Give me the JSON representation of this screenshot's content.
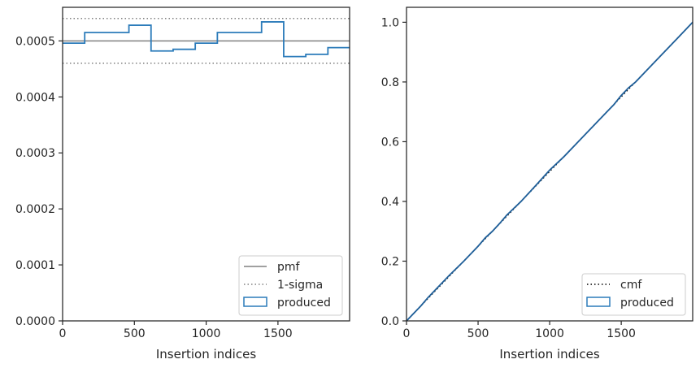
{
  "chart_data": [
    {
      "type": "line",
      "drawstyle": "steps",
      "xlabel": "Insertion indices",
      "ylabel": "",
      "xlim": [
        0,
        1999
      ],
      "ylim": [
        0,
        0.00056
      ],
      "xticks": [
        0,
        500,
        1000,
        1500
      ],
      "xtick_labels": [
        "0",
        "500",
        "1000",
        "1500"
      ],
      "yticks": [
        0,
        0.0001,
        0.0002,
        0.0003,
        0.0004,
        0.0005
      ],
      "ytick_labels": [
        "0.0000",
        "0.0001",
        "0.0002",
        "0.0003",
        "0.0004",
        "0.0005"
      ],
      "grid": false,
      "legend_position": "lower-right",
      "reference_lines": [
        {
          "label": "pmf",
          "y": 0.0005,
          "color": "#808080",
          "style": "solid"
        },
        {
          "label": "1-sigma",
          "y": 0.00054,
          "color": "#808080",
          "style": "dotted"
        },
        {
          "label": "1-sigma",
          "y": 0.00046,
          "color": "#808080",
          "style": "dotted"
        }
      ],
      "series": [
        {
          "name": "produced",
          "color": "#2b7bba",
          "bin_edges": [
            0,
            154,
            462,
            616,
            770,
            924,
            1078,
            1386,
            1540,
            1694,
            1848,
            1999
          ],
          "values": [
            0.000496,
            0.000515,
            0.000528,
            0.000482,
            0.000485,
            0.000496,
            0.000515,
            0.000534,
            0.000472,
            0.000476,
            0.000488
          ]
        }
      ],
      "legend": [
        {
          "label": "pmf",
          "marker": "solid-line",
          "color": "#808080"
        },
        {
          "label": "1-sigma",
          "marker": "dotted-line",
          "color": "#808080"
        },
        {
          "label": "produced",
          "marker": "box",
          "color": "#2b7bba"
        }
      ]
    },
    {
      "type": "line",
      "xlabel": "Insertion indices",
      "ylabel": "",
      "xlim": [
        0,
        1999
      ],
      "ylim": [
        0,
        1.05
      ],
      "xticks": [
        0,
        500,
        1000,
        1500
      ],
      "xtick_labels": [
        "0",
        "500",
        "1000",
        "1500"
      ],
      "yticks": [
        0,
        0.2,
        0.4,
        0.6,
        0.8,
        1.0
      ],
      "ytick_labels": [
        "0.0",
        "0.2",
        "0.4",
        "0.6",
        "0.8",
        "1.0"
      ],
      "grid": false,
      "legend_position": "lower-right",
      "series": [
        {
          "name": "cmf",
          "color": "#000000",
          "style": "dotted",
          "x": [
            0,
            1999
          ],
          "y": [
            0,
            1.0
          ]
        },
        {
          "name": "produced",
          "color": "#1f5f99",
          "style": "solid",
          "x": [
            0,
            30,
            60,
            100,
            150,
            200,
            300,
            400,
            500,
            550,
            600,
            650,
            700,
            800,
            900,
            1000,
            1100,
            1200,
            1300,
            1400,
            1450,
            1500,
            1550,
            1600,
            1650,
            1700,
            1800,
            1900,
            1999
          ],
          "y": [
            0.0,
            0.015,
            0.03,
            0.05,
            0.078,
            0.103,
            0.153,
            0.2,
            0.25,
            0.278,
            0.3,
            0.326,
            0.354,
            0.4,
            0.452,
            0.505,
            0.55,
            0.6,
            0.65,
            0.7,
            0.725,
            0.755,
            0.78,
            0.8,
            0.825,
            0.85,
            0.9,
            0.95,
            1.0
          ]
        }
      ],
      "legend": [
        {
          "label": "cmf",
          "marker": "dotted-line",
          "color": "#000000"
        },
        {
          "label": "produced",
          "marker": "box",
          "color": "#2b7bba"
        }
      ]
    }
  ]
}
